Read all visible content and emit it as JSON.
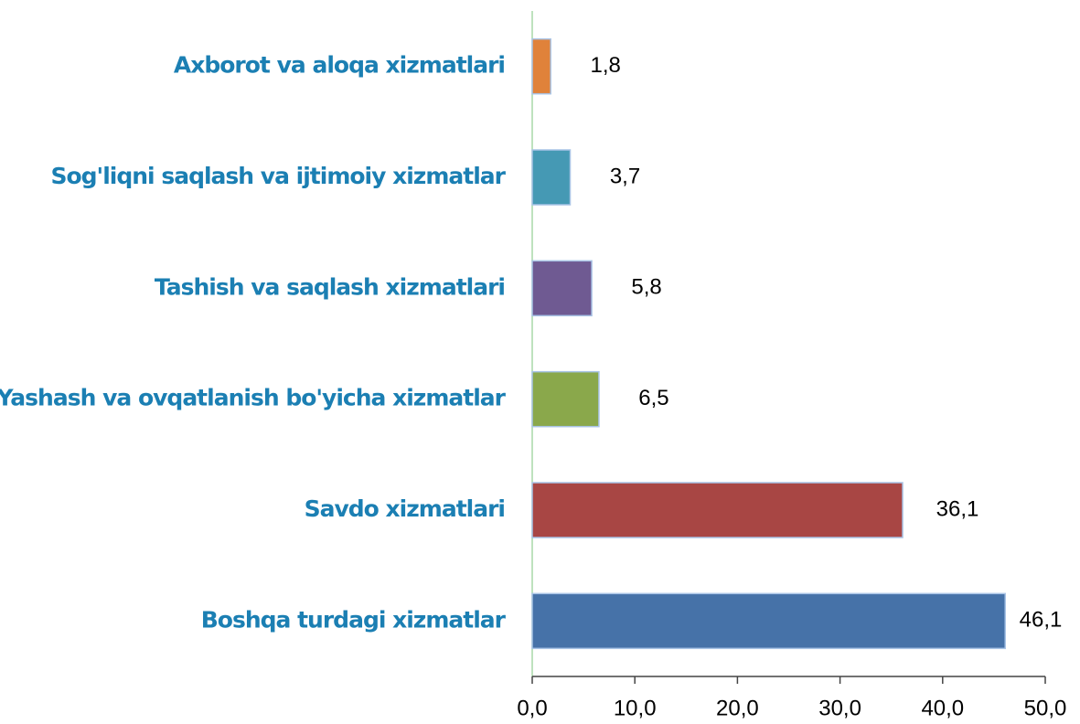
{
  "chart_data": {
    "type": "barh",
    "categories": [
      "Axborot va aloqa xizmatlari",
      "Sog'liqni saqlash va ijtimoiy xizmatlar",
      "Tashish va saqlash xizmatlari",
      "Yashash va ovqatlanish bo'yicha xizmatlar",
      "Savdo xizmatlari",
      "Boshqa turdagi xizmatlar"
    ],
    "values": [
      1.8,
      3.7,
      5.8,
      6.5,
      36.1,
      46.1
    ],
    "value_labels": [
      "1,8",
      "3,7",
      "5,8",
      "6,5",
      "36,1",
      "46,1"
    ],
    "colors": [
      "#e0823a",
      "#4599b4",
      "#6f5a92",
      "#8aa84b",
      "#a84644",
      "#4672a8"
    ],
    "xlim": [
      0,
      50
    ],
    "xticks": [
      {
        "value": 0,
        "label": "0,0"
      },
      {
        "value": 10,
        "label": "10,0"
      },
      {
        "value": 20,
        "label": "20,0"
      },
      {
        "value": 30,
        "label": "30,0"
      },
      {
        "value": 40,
        "label": "40,0"
      },
      {
        "value": 50,
        "label": "50,0"
      }
    ]
  }
}
